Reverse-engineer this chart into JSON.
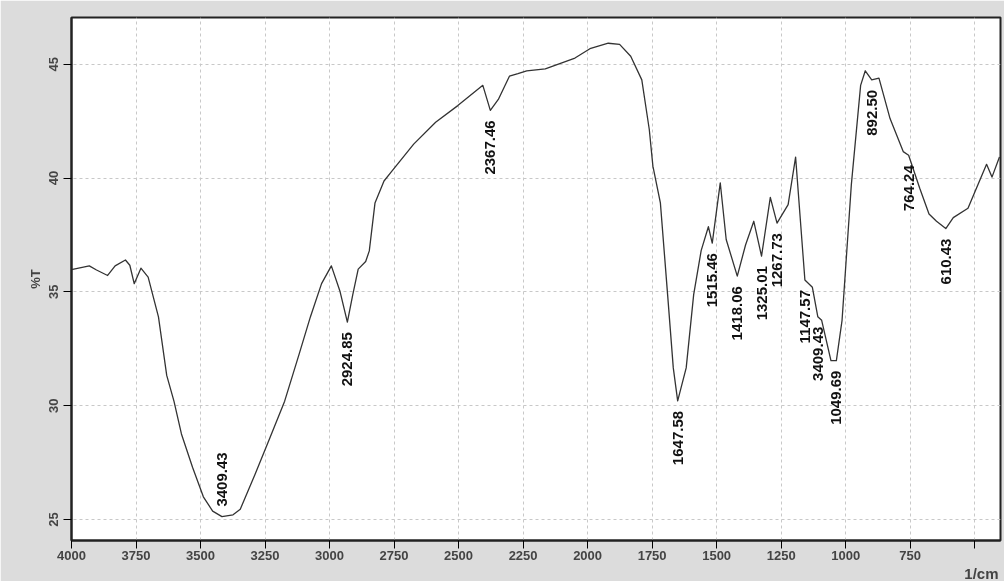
{
  "chart_data": {
    "type": "line",
    "xlabel": "1/cm",
    "ylabel": "%T",
    "xlim": [
      4000,
      400
    ],
    "ylim": [
      24.08,
      47.05
    ],
    "xticks": [
      4000,
      3750,
      3500,
      3250,
      3000,
      2750,
      2500,
      2250,
      2000,
      1750,
      1500,
      1250,
      1000,
      750,
      {
        "value": 500,
        "label": null
      }
    ],
    "yticks": [
      25,
      30,
      35,
      40,
      45
    ],
    "grid": true,
    "marker": "none",
    "line_style": "solid",
    "series": [
      {
        "color": "#333333",
        "x": [
          4000,
          3931,
          3903,
          3860,
          3831,
          3791,
          3774,
          3757,
          3731,
          3703,
          3663,
          3631,
          3603,
          3574,
          3531,
          3489,
          3453,
          3417,
          3374,
          3346,
          3289,
          3231,
          3174,
          3117,
          3074,
          3031,
          2993,
          2960,
          2931,
          2910,
          2889,
          2860,
          2846,
          2824,
          2789,
          2760,
          2674,
          2589,
          2503,
          2406,
          2377,
          2346,
          2303,
          2270,
          2236,
          2164,
          2049,
          1991,
          1920,
          1876,
          1833,
          1790,
          1761,
          1747,
          1718,
          1690,
          1668,
          1651,
          1618,
          1589,
          1560,
          1532,
          1517,
          1486,
          1463,
          1420,
          1388,
          1356,
          1326,
          1292,
          1266,
          1223,
          1194,
          1158,
          1129,
          1108,
          1093,
          1057,
          1036,
          1014,
          978,
          942,
          924,
          899,
          871,
          828,
          777,
          756,
          713,
          677,
          648,
          612,
          583,
          526,
          454,
          433,
          404
        ],
        "values": [
          35.98,
          36.14,
          35.96,
          35.72,
          36.14,
          36.4,
          36.17,
          35.36,
          36.04,
          35.65,
          33.9,
          31.33,
          30.2,
          28.76,
          27.3,
          26.0,
          25.37,
          25.13,
          25.21,
          25.45,
          26.98,
          28.59,
          30.2,
          32.3,
          33.91,
          35.36,
          36.14,
          35.04,
          33.67,
          34.88,
          36.0,
          36.33,
          36.8,
          38.9,
          39.87,
          40.28,
          41.49,
          42.45,
          43.18,
          44.07,
          42.97,
          43.45,
          44.47,
          44.58,
          44.71,
          44.79,
          45.27,
          45.68,
          45.92,
          45.87,
          45.35,
          44.31,
          42.13,
          40.52,
          38.91,
          34.88,
          31.66,
          30.21,
          31.66,
          34.88,
          36.81,
          37.86,
          37.14,
          39.79,
          37.3,
          35.69,
          37.06,
          38.1,
          36.57,
          39.15,
          38.02,
          38.83,
          40.92,
          35.52,
          35.2,
          33.91,
          33.75,
          31.98,
          31.98,
          33.75,
          39.71,
          44.07,
          44.71,
          44.31,
          44.39,
          42.61,
          41.16,
          41.0,
          39.55,
          38.42,
          38.1,
          37.78,
          38.26,
          38.67,
          40.6,
          40.04,
          40.92
        ]
      }
    ],
    "annotations": [
      {
        "text": "3409.43",
        "x": 3417,
        "y": 25.13
      },
      {
        "text": "2924.85",
        "x": 2931,
        "y": 33.67
      },
      {
        "text": "2367.46",
        "x": 2377,
        "y": 42.97
      },
      {
        "text": "1647.58",
        "x": 1651,
        "y": 30.21
      },
      {
        "text": "1515.46",
        "x": 1517,
        "y": 37.14
      },
      {
        "text": "1418.06",
        "x": 1420,
        "y": 35.69
      },
      {
        "text": "1325.01",
        "x": 1326,
        "y": 36.57
      },
      {
        "text": "1267.73",
        "x": 1266,
        "y": 38.02
      },
      {
        "text": "1147.57",
        "x": 1158,
        "y": 35.52
      },
      {
        "text": "3409.43",
        "x": 1108,
        "y": 33.91
      },
      {
        "text": "1049.69",
        "x": 1036,
        "y": 31.98
      },
      {
        "text": "892.50",
        "x": 899,
        "y": 44.31
      },
      {
        "text": "764.24",
        "x": 756,
        "y": 41.0
      },
      {
        "text": "610.43",
        "x": 612,
        "y": 37.78
      }
    ]
  }
}
